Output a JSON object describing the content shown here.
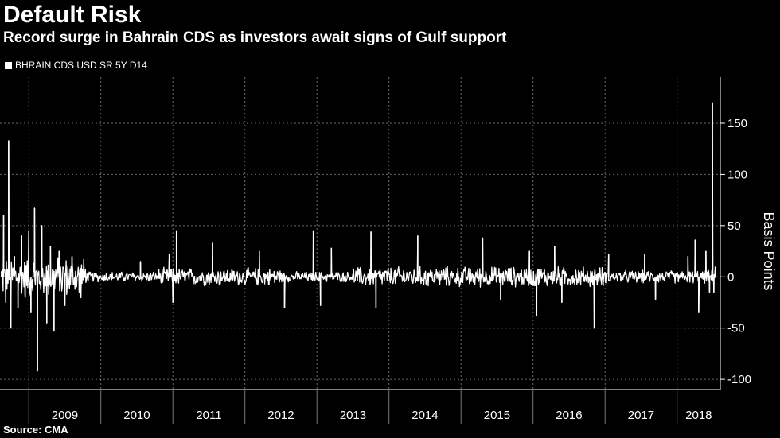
{
  "chart_data": {
    "type": "line",
    "title": "Default Risk",
    "subtitle": "Record surge in Bahrain CDS as investors await signs of Gulf support",
    "series": [
      {
        "name": "BHRAIN CDS USD SR 5Y D14",
        "color": "#ffffff",
        "spikes": [
          {
            "x": 2008.62,
            "y": 5
          },
          {
            "x": 2008.65,
            "y": 60
          },
          {
            "x": 2008.68,
            "y": -25
          },
          {
            "x": 2008.72,
            "y": 133
          },
          {
            "x": 2008.75,
            "y": -50
          },
          {
            "x": 2008.8,
            "y": 20
          },
          {
            "x": 2008.85,
            "y": -30
          },
          {
            "x": 2008.9,
            "y": 40
          },
          {
            "x": 2008.95,
            "y": -20
          },
          {
            "x": 2009.0,
            "y": 45
          },
          {
            "x": 2009.03,
            "y": -35
          },
          {
            "x": 2009.08,
            "y": 67
          },
          {
            "x": 2009.12,
            "y": -92
          },
          {
            "x": 2009.18,
            "y": 50
          },
          {
            "x": 2009.25,
            "y": -45
          },
          {
            "x": 2009.3,
            "y": 30
          },
          {
            "x": 2009.35,
            "y": -53
          },
          {
            "x": 2009.42,
            "y": 25
          },
          {
            "x": 2009.5,
            "y": -28
          },
          {
            "x": 2009.6,
            "y": 20
          },
          {
            "x": 2009.7,
            "y": -15
          },
          {
            "x": 2010.55,
            "y": 15
          },
          {
            "x": 2010.95,
            "y": 22
          },
          {
            "x": 2011.0,
            "y": -25
          },
          {
            "x": 2011.05,
            "y": 45
          },
          {
            "x": 2011.55,
            "y": 33
          },
          {
            "x": 2012.2,
            "y": 25
          },
          {
            "x": 2012.55,
            "y": -30
          },
          {
            "x": 2012.95,
            "y": 45
          },
          {
            "x": 2013.05,
            "y": -28
          },
          {
            "x": 2013.2,
            "y": 28
          },
          {
            "x": 2013.75,
            "y": 44
          },
          {
            "x": 2013.82,
            "y": -30
          },
          {
            "x": 2014.4,
            "y": 40
          },
          {
            "x": 2015.3,
            "y": 38
          },
          {
            "x": 2015.55,
            "y": -22
          },
          {
            "x": 2015.95,
            "y": 25
          },
          {
            "x": 2016.05,
            "y": -38
          },
          {
            "x": 2016.3,
            "y": 30
          },
          {
            "x": 2016.4,
            "y": -25
          },
          {
            "x": 2016.85,
            "y": -50
          },
          {
            "x": 2017.05,
            "y": 22
          },
          {
            "x": 2017.55,
            "y": 22
          },
          {
            "x": 2017.7,
            "y": -22
          },
          {
            "x": 2018.15,
            "y": 20
          },
          {
            "x": 2018.25,
            "y": 36
          },
          {
            "x": 2018.3,
            "y": -35
          },
          {
            "x": 2018.4,
            "y": 25
          },
          {
            "x": 2018.45,
            "y": -15
          },
          {
            "x": 2018.49,
            "y": 170
          },
          {
            "x": 2018.51,
            "y": -15
          },
          {
            "x": 2018.53,
            "y": 10
          }
        ]
      }
    ],
    "xlim": [
      2008.6,
      2018.6
    ],
    "ylim": [
      -110,
      195
    ],
    "x_ticks": [
      "2009",
      "2010",
      "2011",
      "2012",
      "2013",
      "2014",
      "2015",
      "2016",
      "2017",
      "2018"
    ],
    "y_ticks": [
      150,
      100,
      50,
      0,
      -50,
      -100
    ],
    "ylabel": "Basis Points",
    "grid": true,
    "legend": "top-left"
  },
  "source": "Source: CMA"
}
